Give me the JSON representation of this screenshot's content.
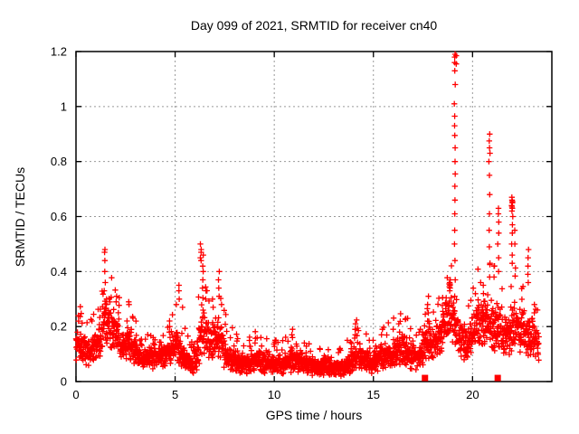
{
  "chart_data": {
    "type": "scatter",
    "title": "Day 099 of 2021, SRMTID for receiver cn40",
    "xlabel": "GPS time / hours",
    "ylabel": "SRMTID / TECUs",
    "xlim": [
      0,
      24
    ],
    "ylim": [
      0,
      1.2
    ],
    "xticks": [
      0,
      5,
      10,
      15,
      20
    ],
    "xtick_labels": [
      "0",
      "5",
      "10",
      "15",
      "20"
    ],
    "yticks": [
      0,
      0.2,
      0.4,
      0.6,
      0.8,
      1,
      1.2
    ],
    "ytick_labels": [
      "0",
      "0.2",
      "0.4",
      "0.6",
      "0.8",
      "1",
      "1.2"
    ],
    "grid": true,
    "grid_color": "#999999",
    "legend": "none",
    "marker": "plus",
    "marker_color": "#ff0000",
    "x_end": 23.35,
    "band": [
      [
        0.0,
        0.15,
        0.07
      ],
      [
        0.3,
        0.12,
        0.05
      ],
      [
        0.6,
        0.11,
        0.05
      ],
      [
        0.9,
        0.12,
        0.05
      ],
      [
        1.2,
        0.15,
        0.06
      ],
      [
        1.45,
        0.21,
        0.08
      ],
      [
        1.7,
        0.21,
        0.08
      ],
      [
        2.0,
        0.17,
        0.07
      ],
      [
        2.3,
        0.13,
        0.06
      ],
      [
        2.6,
        0.14,
        0.06
      ],
      [
        2.9,
        0.11,
        0.05
      ],
      [
        3.2,
        0.09,
        0.045
      ],
      [
        3.6,
        0.085,
        0.04
      ],
      [
        3.9,
        0.1,
        0.05
      ],
      [
        4.2,
        0.085,
        0.045
      ],
      [
        4.6,
        0.1,
        0.05
      ],
      [
        5.0,
        0.13,
        0.065
      ],
      [
        5.3,
        0.11,
        0.06
      ],
      [
        5.6,
        0.075,
        0.04
      ],
      [
        5.9,
        0.06,
        0.035
      ],
      [
        6.1,
        0.1,
        0.06
      ],
      [
        6.35,
        0.19,
        0.09
      ],
      [
        6.6,
        0.16,
        0.08
      ],
      [
        6.9,
        0.14,
        0.07
      ],
      [
        7.2,
        0.17,
        0.08
      ],
      [
        7.5,
        0.11,
        0.06
      ],
      [
        7.8,
        0.085,
        0.045
      ],
      [
        8.2,
        0.07,
        0.04
      ],
      [
        8.6,
        0.06,
        0.035
      ],
      [
        9.0,
        0.08,
        0.04
      ],
      [
        9.4,
        0.07,
        0.04
      ],
      [
        9.8,
        0.06,
        0.035
      ],
      [
        10.1,
        0.075,
        0.04
      ],
      [
        10.5,
        0.06,
        0.035
      ],
      [
        10.9,
        0.085,
        0.05
      ],
      [
        11.3,
        0.07,
        0.04
      ],
      [
        11.7,
        0.06,
        0.035
      ],
      [
        12.1,
        0.05,
        0.03
      ],
      [
        12.5,
        0.06,
        0.035
      ],
      [
        12.9,
        0.045,
        0.025
      ],
      [
        13.3,
        0.05,
        0.03
      ],
      [
        13.7,
        0.06,
        0.035
      ],
      [
        14.1,
        0.095,
        0.055
      ],
      [
        14.5,
        0.08,
        0.045
      ],
      [
        14.9,
        0.07,
        0.04
      ],
      [
        15.3,
        0.085,
        0.05
      ],
      [
        15.7,
        0.1,
        0.05
      ],
      [
        16.0,
        0.105,
        0.055
      ],
      [
        16.4,
        0.115,
        0.06
      ],
      [
        16.8,
        0.1,
        0.05
      ],
      [
        17.2,
        0.095,
        0.05
      ],
      [
        17.6,
        0.13,
        0.065
      ],
      [
        18.0,
        0.15,
        0.07
      ],
      [
        18.4,
        0.155,
        0.06
      ],
      [
        18.8,
        0.25,
        0.09
      ],
      [
        19.05,
        0.22,
        0.08
      ],
      [
        19.35,
        0.15,
        0.06
      ],
      [
        19.7,
        0.14,
        0.06
      ],
      [
        20.0,
        0.17,
        0.07
      ],
      [
        20.3,
        0.22,
        0.08
      ],
      [
        20.6,
        0.22,
        0.08
      ],
      [
        20.9,
        0.21,
        0.09
      ],
      [
        21.2,
        0.21,
        0.1
      ],
      [
        21.5,
        0.17,
        0.08
      ],
      [
        21.8,
        0.165,
        0.07
      ],
      [
        22.1,
        0.21,
        0.09
      ],
      [
        22.4,
        0.19,
        0.08
      ],
      [
        22.7,
        0.165,
        0.07
      ],
      [
        23.0,
        0.165,
        0.07
      ],
      [
        23.35,
        0.13,
        0.06
      ]
    ],
    "spike_columns": [
      {
        "x": 0.1,
        "values": [
          0.24,
          0.22
        ]
      },
      {
        "x": 1.45,
        "values": [
          0.48,
          0.47,
          0.44,
          0.4,
          0.36,
          0.33
        ]
      },
      {
        "x": 1.55,
        "values": [
          0.3,
          0.28
        ]
      },
      {
        "x": 2.05,
        "values": [
          0.31,
          0.29
        ]
      },
      {
        "x": 2.65,
        "values": [
          0.29,
          0.28
        ]
      },
      {
        "x": 3.0,
        "values": [
          0.22
        ]
      },
      {
        "x": 3.9,
        "values": [
          0.16
        ]
      },
      {
        "x": 4.7,
        "values": [
          0.2,
          0.18
        ]
      },
      {
        "x": 5.05,
        "values": [
          0.28
        ]
      },
      {
        "x": 5.2,
        "values": [
          0.35,
          0.33,
          0.3
        ]
      },
      {
        "x": 5.35,
        "values": [
          0.27
        ]
      },
      {
        "x": 6.3,
        "values": [
          0.5,
          0.48,
          0.47,
          0.45,
          0.44
        ]
      },
      {
        "x": 6.4,
        "values": [
          0.46,
          0.42,
          0.4,
          0.37,
          0.34
        ]
      },
      {
        "x": 6.55,
        "values": [
          0.33,
          0.3
        ]
      },
      {
        "x": 6.9,
        "values": [
          0.3,
          0.27
        ]
      },
      {
        "x": 7.2,
        "values": [
          0.4,
          0.37,
          0.34,
          0.31
        ]
      },
      {
        "x": 7.35,
        "values": [
          0.28
        ]
      },
      {
        "x": 8.45,
        "values": [
          0.13
        ]
      },
      {
        "x": 9.0,
        "values": [
          0.14
        ]
      },
      {
        "x": 9.35,
        "values": [
          0.16
        ]
      },
      {
        "x": 10.1,
        "values": [
          0.15
        ]
      },
      {
        "x": 10.9,
        "values": [
          0.19,
          0.17,
          0.16
        ]
      },
      {
        "x": 11.5,
        "values": [
          0.14
        ]
      },
      {
        "x": 12.3,
        "values": [
          0.12
        ]
      },
      {
        "x": 13.7,
        "values": [
          0.15
        ]
      },
      {
        "x": 14.1,
        "values": [
          0.21,
          0.19,
          0.17
        ]
      },
      {
        "x": 14.8,
        "values": [
          0.15
        ]
      },
      {
        "x": 15.4,
        "values": [
          0.17
        ]
      },
      {
        "x": 16.0,
        "values": [
          0.19
        ]
      },
      {
        "x": 16.3,
        "values": [
          0.21,
          0.18
        ]
      },
      {
        "x": 16.6,
        "values": [
          0.16
        ]
      },
      {
        "x": 17.35,
        "values": [
          0.19
        ]
      },
      {
        "x": 17.75,
        "values": [
          0.31,
          0.28,
          0.25,
          0.22
        ]
      },
      {
        "x": 18.5,
        "values": [
          0.22
        ]
      },
      {
        "x": 18.85,
        "values": [
          0.37,
          0.36,
          0.355,
          0.35,
          0.345,
          0.34,
          0.33
        ]
      },
      {
        "x": 19.1,
        "values": [
          1.19,
          1.18,
          1.16,
          1.13,
          1.08,
          1.01,
          0.965,
          0.93,
          0.895,
          0.85,
          0.8,
          0.755,
          0.71,
          0.66,
          0.61,
          0.55,
          0.5,
          0.44,
          0.37,
          0.31
        ]
      },
      {
        "x": 19.15,
        "values": [
          1.185,
          1.155
        ]
      },
      {
        "x": 20.55,
        "values": [
          0.35,
          0.32
        ]
      },
      {
        "x": 20.85,
        "values": [
          0.9,
          0.875,
          0.85,
          0.83,
          0.8,
          0.75,
          0.68,
          0.61,
          0.55,
          0.49,
          0.43,
          0.38
        ]
      },
      {
        "x": 21.1,
        "values": [
          0.42,
          0.38
        ]
      },
      {
        "x": 21.3,
        "values": [
          0.63,
          0.61,
          0.58,
          0.54,
          0.5,
          0.45,
          0.4
        ]
      },
      {
        "x": 22.0,
        "values": [
          0.67,
          0.66,
          0.655,
          0.65,
          0.64,
          0.635,
          0.63,
          0.62,
          0.6,
          0.57,
          0.54,
          0.5,
          0.46,
          0.43
        ]
      },
      {
        "x": 22.15,
        "values": [
          0.55,
          0.5
        ]
      },
      {
        "x": 22.8,
        "values": [
          0.48,
          0.45,
          0.42,
          0.39,
          0.36
        ]
      },
      {
        "x": 23.1,
        "values": [
          0.28,
          0.25
        ]
      }
    ],
    "square_markers": [
      [
        17.6,
        0.013
      ],
      [
        21.27,
        0.013
      ]
    ],
    "render_hints": {
      "seed": 99,
      "points_per_hour": 110,
      "tail_prob": 0.06
    }
  }
}
